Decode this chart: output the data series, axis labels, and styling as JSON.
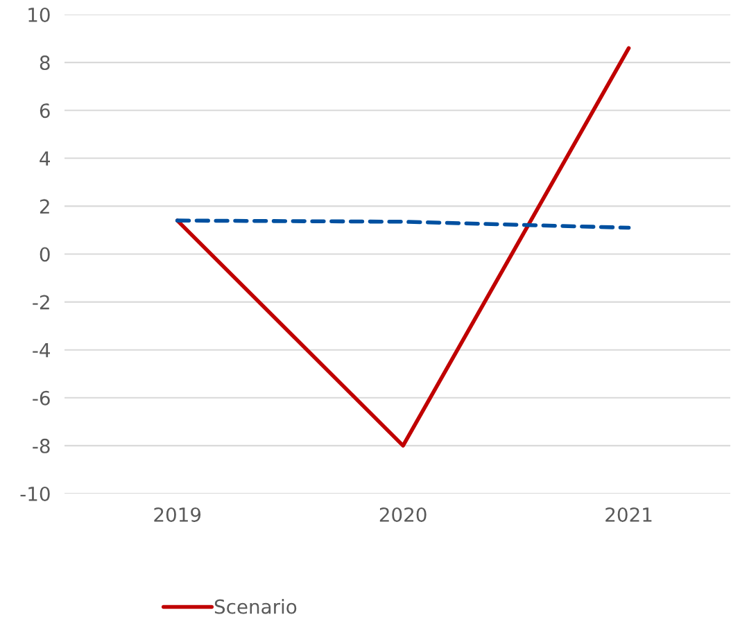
{
  "chart_data": {
    "type": "line",
    "categories": [
      "2019",
      "2020",
      "2021"
    ],
    "series": [
      {
        "name": "Scenario",
        "color": "#c00000",
        "values": [
          1.4,
          -8.0,
          8.6
        ],
        "line_style": "solid"
      },
      {
        "color": "#0050a0",
        "values": [
          1.4,
          1.35,
          1.1
        ],
        "line_style": "dashed"
      }
    ],
    "ylim": [
      -10,
      10
    ],
    "yticks": [
      -10,
      -8,
      -6,
      -4,
      -2,
      0,
      2,
      4,
      6,
      8,
      10
    ],
    "grid": "y",
    "legend": "bottom"
  }
}
